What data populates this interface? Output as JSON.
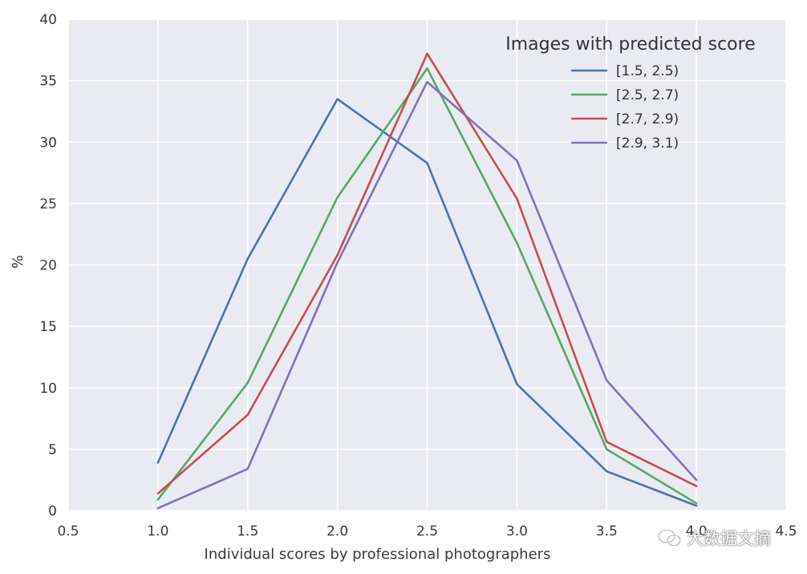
{
  "chart_data": {
    "type": "line",
    "title": "",
    "xlabel": "Individual scores by professional photographers",
    "ylabel": "%",
    "xlim": [
      0.5,
      4.5
    ],
    "ylim": [
      0,
      40
    ],
    "xticks": [
      "0.5",
      "1.0",
      "1.5",
      "2.0",
      "2.5",
      "3.0",
      "3.5",
      "4.0",
      "4.5"
    ],
    "yticks": [
      "0",
      "5",
      "10",
      "15",
      "20",
      "25",
      "30",
      "35",
      "40"
    ],
    "grid": true,
    "legend": {
      "title": "Images with predicted score",
      "placement": "top-right"
    },
    "x": [
      1.0,
      1.5,
      2.0,
      2.5,
      3.0,
      3.5,
      4.0
    ],
    "series": [
      {
        "name": "[1.5, 2.5)",
        "color": "#4c72b0",
        "values": [
          3.9,
          20.5,
          33.5,
          28.3,
          10.3,
          3.2,
          0.4
        ]
      },
      {
        "name": "[2.5, 2.7)",
        "color": "#55a868",
        "values": [
          0.9,
          10.4,
          25.5,
          36.0,
          21.8,
          5.0,
          0.6
        ]
      },
      {
        "name": "[2.7, 2.9)",
        "color": "#c44e52",
        "values": [
          1.4,
          7.8,
          20.8,
          37.2,
          25.4,
          5.6,
          2.0
        ]
      },
      {
        "name": "[2.9, 3.1)",
        "color": "#8172b2",
        "values": [
          0.2,
          3.4,
          20.2,
          34.9,
          28.5,
          10.6,
          2.5
        ]
      }
    ]
  },
  "watermark": {
    "text": "大数据文摘",
    "icon": "wechat-icon"
  }
}
